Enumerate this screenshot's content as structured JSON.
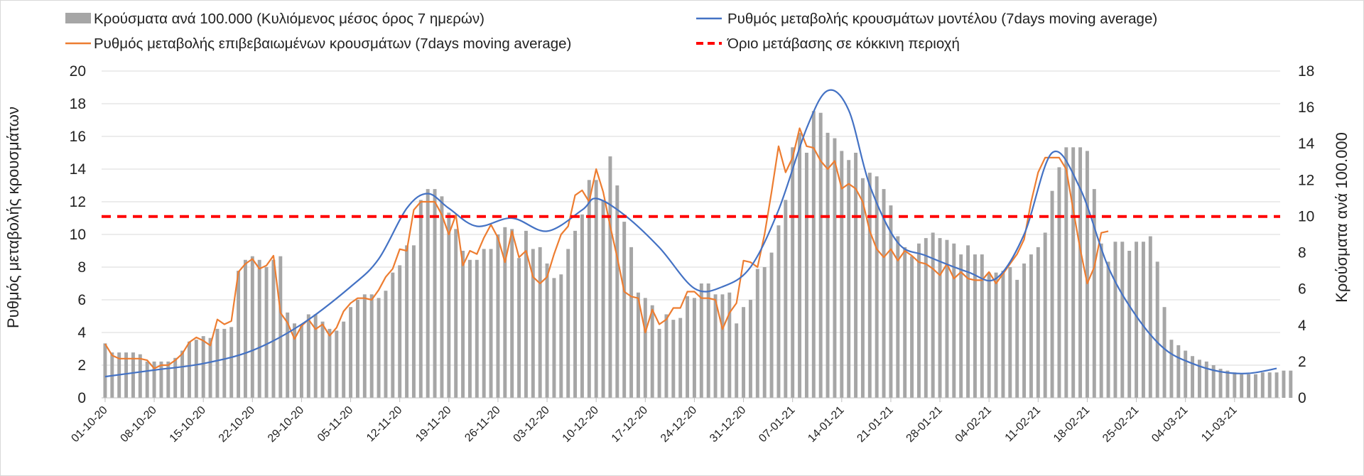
{
  "chart_data": {
    "type": "bar",
    "title": "",
    "ylabel": "Ρυθμός μεταβολής κρουσμάτων",
    "y2label": "Κρούσματα ανά 100.000",
    "ylim": [
      0,
      20
    ],
    "yticks": [
      0,
      2,
      4,
      6,
      8,
      10,
      12,
      14,
      16,
      18,
      20
    ],
    "y2lim": [
      0,
      18
    ],
    "y2ticks": [
      0,
      2,
      4,
      6,
      8,
      10,
      12,
      14,
      16,
      18
    ],
    "grid": true,
    "legend_position": "top",
    "x_start": "2020-10-01",
    "x_end": "2021-03-17",
    "xtick_labels": [
      "01-10-20",
      "08-10-20",
      "15-10-20",
      "22-10-20",
      "29-10-20",
      "05-11-20",
      "12-11-20",
      "19-11-20",
      "26-11-20",
      "03-12-20",
      "10-12-20",
      "17-12-20",
      "24-12-20",
      "31-12-20",
      "07-01-21",
      "14-01-21",
      "21-01-21",
      "28-01-21",
      "04-02-21",
      "11-02-21",
      "18-02-21",
      "25-02-21",
      "04-03-21",
      "11-03-21"
    ],
    "series": [
      {
        "name": "Κρούσματα ανά 100.000 (Κυλιόμενος μέσος όρος 7 ημερών)",
        "kind": "bar",
        "axis": "right",
        "color": "#a6a6a6",
        "x_start": "2020-10-01",
        "values": [
          3.0,
          2.5,
          2.5,
          2.5,
          2.5,
          2.4,
          2.0,
          2.0,
          2.0,
          2.0,
          2.2,
          2.6,
          3.1,
          3.2,
          3.4,
          3.3,
          3.8,
          3.8,
          3.9,
          7.0,
          7.6,
          7.8,
          7.6,
          7.2,
          7.6,
          7.8,
          4.7,
          4.1,
          4.0,
          4.6,
          4.6,
          4.2,
          3.8,
          3.7,
          4.2,
          5.0,
          5.4,
          5.7,
          5.7,
          5.5,
          5.9,
          6.9,
          7.3,
          8.4,
          8.4,
          10.9,
          11.5,
          11.5,
          11.1,
          10.2,
          9.3,
          8.1,
          7.6,
          7.6,
          8.2,
          8.2,
          9.0,
          9.4,
          9.3,
          7.7,
          9.2,
          8.2,
          8.3,
          7.4,
          6.6,
          6.8,
          8.2,
          9.2,
          10.1,
          12.0,
          12.0,
          10.9,
          13.3,
          11.7,
          9.7,
          8.3,
          5.8,
          5.5,
          5.1,
          3.8,
          4.6,
          4.3,
          4.4,
          5.6,
          5.5,
          6.3,
          6.3,
          5.7,
          5.7,
          5.8,
          4.1,
          5.0,
          5.4,
          7.1,
          7.2,
          8.0,
          9.5,
          10.9,
          13.8,
          14.6,
          13.5,
          15.8,
          15.7,
          14.6,
          14.3,
          13.6,
          13.1,
          13.5,
          12.1,
          12.4,
          12.2,
          11.5,
          10.6,
          8.9,
          8.3,
          7.8,
          8.5,
          8.8,
          9.1,
          8.8,
          8.7,
          8.5,
          7.9,
          8.4,
          7.9,
          7.9,
          6.9,
          6.9,
          7.0,
          7.2,
          6.5,
          7.4,
          7.9,
          8.3,
          9.1,
          11.4,
          12.7,
          13.8,
          13.8,
          13.8,
          13.6,
          11.5,
          8.5,
          7.5,
          8.6,
          8.6,
          8.1,
          8.6,
          8.6,
          8.9,
          7.5,
          5.0,
          3.2,
          2.9,
          2.6,
          2.3,
          2.1,
          2.0,
          1.8,
          1.6,
          1.5,
          1.4,
          1.3,
          1.3,
          1.3,
          1.4,
          1.4,
          1.4,
          1.5,
          1.5
        ]
      },
      {
        "name": "Ρυθμός μεταβολής επιβεβαιωμένων κρουσμάτων (7days moving average)",
        "kind": "line",
        "axis": "left",
        "color": "#ed7d31",
        "x_start": "2020-10-01",
        "values": [
          3.3,
          2.6,
          2.4,
          2.4,
          2.4,
          2.4,
          2.3,
          1.8,
          2.0,
          2.0,
          2.3,
          2.7,
          3.4,
          3.7,
          3.5,
          3.2,
          4.8,
          4.5,
          4.7,
          7.7,
          8.2,
          8.5,
          7.9,
          8.1,
          8.7,
          5.2,
          4.6,
          3.6,
          4.4,
          4.8,
          4.2,
          4.5,
          3.8,
          4.3,
          5.3,
          5.8,
          6.1,
          6.1,
          6.0,
          6.6,
          7.4,
          7.9,
          9.1,
          9.0,
          11.5,
          12.0,
          12.0,
          12.0,
          11.2,
          10.0,
          11.2,
          8.1,
          9.0,
          8.8,
          9.8,
          10.6,
          9.8,
          8.3,
          10.2,
          8.6,
          9.0,
          7.4,
          7.0,
          7.4,
          8.8,
          10.0,
          10.5,
          12.4,
          12.7,
          12.0,
          14.0,
          12.6,
          10.5,
          8.6,
          6.5,
          6.2,
          6.1,
          4.0,
          5.4,
          4.5,
          4.8,
          5.5,
          5.5,
          6.5,
          6.5,
          6.1,
          6.1,
          6.0,
          4.2,
          5.2,
          5.8,
          8.4,
          8.3,
          8.0,
          10.0,
          12.6,
          15.4,
          13.8,
          14.7,
          16.5,
          15.4,
          15.3,
          14.5,
          14.0,
          14.5,
          12.8,
          13.1,
          12.8,
          12.0,
          10.2,
          9.1,
          8.6,
          9.1,
          8.4,
          9.0,
          8.7,
          8.3,
          8.2,
          7.9,
          7.5,
          8.2,
          7.3,
          7.7,
          7.3,
          7.2,
          7.2,
          7.7,
          7.0,
          7.6,
          8.2,
          8.8,
          9.7,
          12.0,
          13.8,
          14.7,
          14.7,
          14.7,
          14.0,
          11.5,
          9.1,
          7.0,
          8.0,
          10.1,
          10.2
        ]
      },
      {
        "name": "Ρυθμός μεταβολής κρουσμάτων μοντέλου (7days moving average)",
        "kind": "line",
        "axis": "left",
        "color": "#4472c4",
        "points": [
          [
            "2020-10-01",
            1.3
          ],
          [
            "2020-10-08",
            1.7
          ],
          [
            "2020-10-15",
            2.1
          ],
          [
            "2020-10-22",
            2.9
          ],
          [
            "2020-10-29",
            4.5
          ],
          [
            "2020-11-05",
            6.8
          ],
          [
            "2020-11-09",
            8.5
          ],
          [
            "2020-11-13",
            11.6
          ],
          [
            "2020-11-16",
            12.5
          ],
          [
            "2020-11-19",
            11.6
          ],
          [
            "2020-11-23",
            10.5
          ],
          [
            "2020-11-28",
            11.0
          ],
          [
            "2020-12-03",
            10.2
          ],
          [
            "2020-12-08",
            11.5
          ],
          [
            "2020-12-10",
            12.2
          ],
          [
            "2020-12-14",
            11.2
          ],
          [
            "2020-12-19",
            9.2
          ],
          [
            "2020-12-24",
            6.7
          ],
          [
            "2020-12-28",
            6.8
          ],
          [
            "2021-01-01",
            8.0
          ],
          [
            "2021-01-05",
            11.5
          ],
          [
            "2021-01-09",
            16.5
          ],
          [
            "2021-01-12",
            18.8
          ],
          [
            "2021-01-15",
            17.6
          ],
          [
            "2021-01-18",
            13.0
          ],
          [
            "2021-01-22",
            9.5
          ],
          [
            "2021-01-26",
            8.7
          ],
          [
            "2021-02-01",
            7.7
          ],
          [
            "2021-02-05",
            7.3
          ],
          [
            "2021-02-09",
            10.0
          ],
          [
            "2021-02-13",
            15.0
          ],
          [
            "2021-02-17",
            12.8
          ],
          [
            "2021-02-21",
            8.0
          ],
          [
            "2021-02-25",
            5.0
          ],
          [
            "2021-03-01",
            3.0
          ],
          [
            "2021-03-05",
            2.1
          ],
          [
            "2021-03-09",
            1.6
          ],
          [
            "2021-03-13",
            1.5
          ],
          [
            "2021-03-17",
            1.8
          ]
        ]
      },
      {
        "name": "Όριο μετάβασης σε κόκκινη περιοχή",
        "kind": "hline",
        "axis": "left",
        "color": "#ff0000",
        "value": 11.1
      }
    ]
  }
}
